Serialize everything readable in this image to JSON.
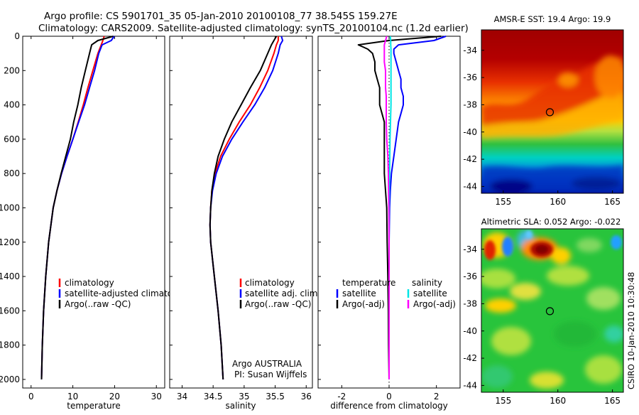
{
  "title_line1": "Argo profile: CS 5901701_35 05-Jan-2010 20100108_77 38.545S 159.27E",
  "title_line2": "Climatology: CARS2009. Satellite-adjusted climatology: synTS_20100104.nc (1.2d earlier)",
  "side_label": "CSIRO 10-Jan-2010 10:30:48",
  "colors": {
    "climatology": "#ff0000",
    "satellite": "#0000ff",
    "argo": "#000000",
    "cyan": "#00e5e5",
    "magenta": "#ff00ff"
  },
  "chart_data": [
    {
      "id": "temperature",
      "type": "line",
      "xlabel": "temperature",
      "ylabel": "",
      "xlim": [
        -2,
        32
      ],
      "ylim": [
        2050,
        0
      ],
      "xticks": [
        0,
        10,
        20,
        30
      ],
      "yticks": [
        0,
        200,
        400,
        600,
        800,
        1000,
        1200,
        1400,
        1600,
        1800,
        2000
      ],
      "depth": [
        0,
        25,
        50,
        100,
        200,
        300,
        400,
        500,
        600,
        700,
        800,
        900,
        1000,
        1200,
        1400,
        1600,
        1800,
        2000
      ],
      "series": [
        {
          "name": "climatology",
          "color": "red",
          "values": [
            17.5,
            17.2,
            16.8,
            16.0,
            14.8,
            13.6,
            12.5,
            11.3,
            10.0,
            8.6,
            7.3,
            6.2,
            5.3,
            4.2,
            3.5,
            3.0,
            2.7,
            2.5
          ]
        },
        {
          "name": "satellite-adjusted climatology",
          "color": "blue",
          "values": [
            19.9,
            19.2,
            17.0,
            16.2,
            15.2,
            14.0,
            12.8,
            11.4,
            10.0,
            8.6,
            7.3,
            6.2,
            5.3,
            4.2,
            3.5,
            3.0,
            2.7,
            2.5
          ]
        },
        {
          "name": "Argo(..raw -QC)",
          "color": "black",
          "values": [
            19.7,
            16.0,
            14.5,
            14.0,
            13.0,
            12.0,
            11.2,
            10.2,
            9.4,
            8.3,
            7.2,
            6.2,
            5.3,
            4.2,
            3.5,
            3.0,
            2.7,
            2.5
          ]
        }
      ],
      "legend": [
        "climatology",
        "satellite-adjusted climatology",
        "Argo(..raw -QC)"
      ]
    },
    {
      "id": "salinity",
      "type": "line",
      "xlabel": "salinity",
      "ylabel": "",
      "xlim": [
        33.8,
        36.1
      ],
      "ylim": [
        2050,
        0
      ],
      "xticks": [
        34,
        34.5,
        35,
        35.5,
        36
      ],
      "depth": [
        0,
        25,
        50,
        100,
        200,
        300,
        400,
        500,
        600,
        700,
        800,
        900,
        1000,
        1100,
        1200,
        1400,
        1600,
        1800,
        2000
      ],
      "series": [
        {
          "name": "climatology",
          "color": "red",
          "values": [
            35.55,
            35.55,
            35.52,
            35.48,
            35.38,
            35.25,
            35.1,
            34.92,
            34.76,
            34.62,
            34.53,
            34.48,
            34.46,
            34.45,
            34.46,
            34.52,
            34.58,
            34.63,
            34.66
          ]
        },
        {
          "name": "satellite adj. clim.",
          "color": "blue",
          "values": [
            35.6,
            35.62,
            35.58,
            35.55,
            35.46,
            35.33,
            35.17,
            34.98,
            34.8,
            34.65,
            34.55,
            34.49,
            34.46,
            34.45,
            34.46,
            34.52,
            34.58,
            34.63,
            34.66
          ]
        },
        {
          "name": "Argo(..raw -QC)",
          "color": "black",
          "values": [
            35.52,
            35.48,
            35.44,
            35.38,
            35.26,
            35.1,
            34.95,
            34.8,
            34.68,
            34.58,
            34.52,
            34.48,
            34.46,
            34.45,
            34.46,
            34.52,
            34.58,
            34.63,
            34.66
          ]
        }
      ],
      "legend": [
        "climatology",
        "satellite adj. clim.",
        "Argo(..raw -QC)"
      ],
      "annotation_line1": "Argo AUSTRALIA",
      "annotation_line2": "PI: Susan Wijffels"
    },
    {
      "id": "difference",
      "type": "line",
      "xlabel": "difference from climatology",
      "ylabel": "",
      "xlim": [
        -3.0,
        3.0
      ],
      "ylim": [
        2050,
        0
      ],
      "xticks": [
        -2,
        0,
        2
      ],
      "depth": [
        0,
        25,
        50,
        75,
        100,
        150,
        200,
        250,
        300,
        350,
        400,
        450,
        500,
        600,
        700,
        800,
        900,
        1000,
        1200,
        1400,
        1600,
        1800,
        2000
      ],
      "series": [
        {
          "name": "temperature satellite",
          "color": "blue",
          "values": [
            2.4,
            1.9,
            0.4,
            0.2,
            0.2,
            0.3,
            0.4,
            0.5,
            0.5,
            0.6,
            0.6,
            0.5,
            0.4,
            0.3,
            0.2,
            0.1,
            0.05,
            0.02,
            0.0,
            0.0,
            0.0,
            0.0,
            0.0
          ]
        },
        {
          "name": "temperature Argo(-adj)",
          "color": "black",
          "values": [
            2.2,
            0.0,
            -1.3,
            -0.9,
            -0.7,
            -0.6,
            -0.6,
            -0.5,
            -0.4,
            -0.4,
            -0.4,
            -0.3,
            -0.2,
            -0.2,
            -0.2,
            -0.2,
            -0.15,
            -0.1,
            -0.08,
            -0.05,
            -0.03,
            -0.02,
            0.0
          ]
        },
        {
          "name": "salinity satellite",
          "color": "cyan",
          "values": [
            0.05,
            0.07,
            0.07,
            0.08,
            0.08,
            0.08,
            0.08,
            0.08,
            0.08,
            0.08,
            0.08,
            0.07,
            0.06,
            0.04,
            0.03,
            0.02,
            0.01,
            0.0,
            0.0,
            0.0,
            0.0,
            0.0,
            0.0
          ]
        },
        {
          "name": "salinity Argo(-adj)",
          "color": "magenta",
          "values": [
            -0.1,
            -0.15,
            -0.2,
            -0.2,
            -0.2,
            -0.2,
            -0.15,
            -0.15,
            -0.15,
            -0.12,
            -0.12,
            -0.12,
            -0.12,
            -0.1,
            -0.05,
            -0.03,
            -0.02,
            -0.01,
            0.0,
            0.0,
            0.0,
            0.0,
            0.0
          ]
        }
      ],
      "legend_temperature_title": "temperature",
      "legend_salinity_title": "salinity",
      "legend_temperature": [
        "satellite",
        "Argo(-adj)"
      ],
      "legend_salinity": [
        "satellite",
        "Argo(-adj)"
      ]
    },
    {
      "id": "sst_map",
      "type": "heatmap",
      "title": "AMSR-E SST: 19.4 Argo: 19.9",
      "xlim": [
        153,
        166
      ],
      "ylim": [
        -44.5,
        -32.5
      ],
      "xticks": [
        155,
        160,
        165
      ],
      "yticks": [
        -34,
        -36,
        -38,
        -40,
        -42,
        -44
      ],
      "marker": {
        "lon": 159.27,
        "lat": -38.545
      }
    },
    {
      "id": "sla_map",
      "type": "heatmap",
      "title": "Altimetric SLA: 0.052 Argo: -0.022",
      "xlim": [
        153,
        166
      ],
      "ylim": [
        -44.5,
        -32.5
      ],
      "xticks": [
        155,
        160,
        165
      ],
      "yticks": [
        -34,
        -36,
        -38,
        -40,
        -42,
        -44
      ],
      "marker": {
        "lon": 159.27,
        "lat": -38.545
      }
    }
  ]
}
